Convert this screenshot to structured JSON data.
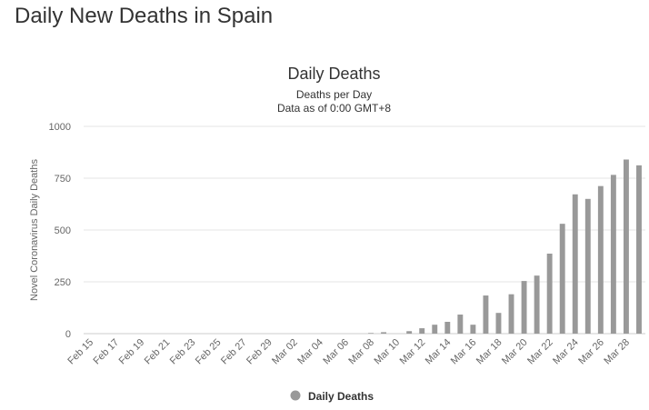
{
  "page": {
    "heading": "Daily New Deaths in Spain"
  },
  "chart_data": {
    "type": "bar",
    "title": "Daily Deaths",
    "subtitle": [
      "Deaths per Day",
      "Data as of 0:00 GMT+8"
    ],
    "ylabel": "Novel Coronavirus Daily Deaths",
    "xlabel": "",
    "ylim": [
      0,
      1000
    ],
    "yticks": [
      0,
      250,
      500,
      750,
      1000
    ],
    "ytick_labels": [
      "0",
      "250",
      "500",
      "750",
      "1000"
    ],
    "grid": true,
    "legend_position": "bottom-center",
    "bar_color": "#999999",
    "categories": [
      "Feb 15",
      "Feb 16",
      "Feb 17",
      "Feb 18",
      "Feb 19",
      "Feb 20",
      "Feb 21",
      "Feb 22",
      "Feb 23",
      "Feb 24",
      "Feb 25",
      "Feb 26",
      "Feb 27",
      "Feb 28",
      "Feb 29",
      "Mar 01",
      "Mar 02",
      "Mar 03",
      "Mar 04",
      "Mar 05",
      "Mar 06",
      "Mar 07",
      "Mar 08",
      "Mar 09",
      "Mar 10",
      "Mar 11",
      "Mar 12",
      "Mar 13",
      "Mar 14",
      "Mar 15",
      "Mar 16",
      "Mar 17",
      "Mar 18",
      "Mar 19",
      "Mar 20",
      "Mar 21",
      "Mar 22",
      "Mar 23",
      "Mar 24",
      "Mar 25",
      "Mar 26",
      "Mar 27",
      "Mar 28",
      "Mar 29"
    ],
    "tick_labels": [
      "Feb 15",
      "Feb 17",
      "Feb 19",
      "Feb 21",
      "Feb 23",
      "Feb 25",
      "Feb 27",
      "Feb 29",
      "Mar 02",
      "Mar 04",
      "Mar 06",
      "Mar 08",
      "Mar 10",
      "Mar 12",
      "Mar 14",
      "Mar 16",
      "Mar 18",
      "Mar 20",
      "Mar 22",
      "Mar 24",
      "Mar 26",
      "Mar 28"
    ],
    "series": [
      {
        "name": "Daily Deaths",
        "values": [
          0,
          0,
          0,
          0,
          0,
          0,
          0,
          0,
          0,
          0,
          0,
          0,
          0,
          0,
          0,
          0,
          0,
          0,
          0,
          0,
          0,
          0,
          3,
          7,
          0,
          12,
          26,
          43,
          57,
          92,
          43,
          184,
          100,
          190,
          254,
          280,
          386,
          530,
          672,
          650,
          712,
          766,
          840,
          812
        ]
      }
    ]
  }
}
